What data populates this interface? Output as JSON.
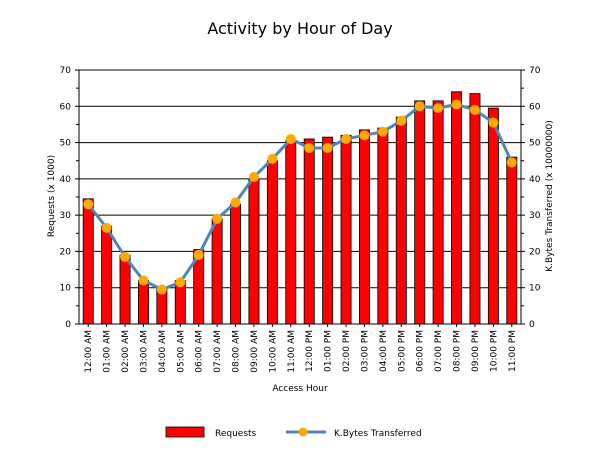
{
  "chart_data": {
    "type": "bar",
    "title": "Activity by Hour of Day",
    "xlabel": "Access Hour",
    "ylabel": "Requests (x 1000)",
    "y2label": "K.Bytes Transferred (x 10000000)",
    "ylim": [
      0,
      70
    ],
    "y2lim": [
      0,
      70
    ],
    "yticks": [
      0,
      10,
      20,
      30,
      40,
      50,
      60,
      70
    ],
    "grid": true,
    "legend_position": "bottom",
    "categories": [
      "12:00 AM",
      "01:00 AM",
      "02:00 AM",
      "03:00 AM",
      "04:00 AM",
      "05:00 AM",
      "06:00 AM",
      "07:00 AM",
      "08:00 AM",
      "09:00 AM",
      "10:00 AM",
      "11:00 AM",
      "12:00 PM",
      "01:00 PM",
      "02:00 PM",
      "03:00 PM",
      "04:00 PM",
      "05:00 PM",
      "06:00 PM",
      "07:00 PM",
      "08:00 PM",
      "09:00 PM",
      "10:00 PM",
      "11:00 PM"
    ],
    "series": [
      {
        "name": "Requests",
        "type": "bar",
        "axis": "left",
        "color": "#ff0000",
        "values": [
          34.5,
          27,
          19,
          12,
          10,
          12,
          20.5,
          29,
          33,
          40,
          45,
          50.5,
          51,
          51.5,
          52,
          53.5,
          54,
          57,
          61.5,
          61.5,
          64,
          63.5,
          59.5,
          46
        ]
      },
      {
        "name": "K.Bytes Transferred",
        "type": "line",
        "axis": "right",
        "line_color": "#4f86b8",
        "marker_color": "#ffa800",
        "values": [
          33,
          26.5,
          18.5,
          12,
          9.5,
          11.5,
          19,
          29,
          33.5,
          40.5,
          45.5,
          51,
          48.5,
          48.5,
          51,
          52,
          53,
          56,
          60,
          59.5,
          60.5,
          59,
          55.5,
          44.5
        ]
      }
    ]
  }
}
